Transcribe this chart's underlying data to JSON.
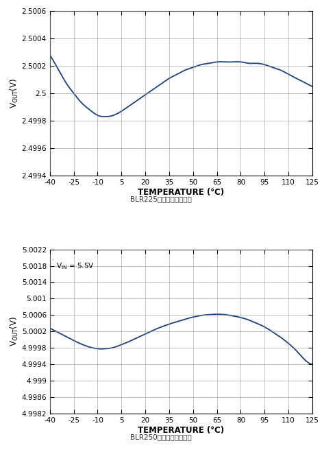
{
  "chart1": {
    "title": "BLR225基准输出温漂曲线",
    "xlabel": "TEMPERATURE (°C)",
    "xlim": [
      -40,
      125
    ],
    "ylim": [
      2.4994,
      2.5006
    ],
    "xticks": [
      -40,
      -25,
      -10,
      5,
      20,
      35,
      50,
      65,
      80,
      95,
      110,
      125
    ],
    "yticks": [
      2.4994,
      2.4996,
      2.4998,
      2.5,
      2.5002,
      2.5004,
      2.5006
    ],
    "ytick_labels": [
      "2.4994",
      "2.4996",
      "2.4998",
      "2.5",
      "2.5002",
      "2.5004",
      "2.5006"
    ],
    "line_color": "#1f3f7f",
    "curve_x": [
      -40,
      -35,
      -30,
      -25,
      -20,
      -15,
      -10,
      -5,
      0,
      5,
      10,
      15,
      20,
      25,
      30,
      35,
      40,
      45,
      50,
      55,
      60,
      65,
      70,
      75,
      80,
      85,
      90,
      95,
      100,
      105,
      110,
      115,
      120,
      125
    ],
    "curve_y": [
      2.50028,
      2.50018,
      2.50008,
      2.5,
      2.49993,
      2.49988,
      2.49984,
      2.49983,
      2.49984,
      2.49987,
      2.49991,
      2.49995,
      2.49999,
      2.50003,
      2.50007,
      2.50011,
      2.50014,
      2.50017,
      2.50019,
      2.50021,
      2.50022,
      2.50023,
      2.50023,
      2.50023,
      2.50023,
      2.50022,
      2.50022,
      2.50021,
      2.50019,
      2.50017,
      2.50014,
      2.50011,
      2.50008,
      2.50005
    ]
  },
  "chart2": {
    "title": "BLR250基准输出温漂曲线",
    "xlabel": "TEMPERATURE (°C)",
    "xlim": [
      -40,
      125
    ],
    "ylim": [
      4.9982,
      5.0022
    ],
    "xticks": [
      -40,
      -25,
      -10,
      5,
      20,
      35,
      50,
      65,
      80,
      95,
      110,
      125
    ],
    "yticks": [
      4.9982,
      4.9986,
      4.999,
      4.9994,
      4.9998,
      5.0002,
      5.0006,
      5.001,
      5.0014,
      5.0018,
      5.0022
    ],
    "ytick_labels": [
      "4.9982",
      "4.9986",
      "4.999",
      "4.9994",
      "4.9998",
      "5.0002",
      "5.0006",
      "5.001",
      "5.0014",
      "5.0018",
      "5.0022"
    ],
    "annotation": "V",
    "line_color": "#1f3f7f",
    "curve_x": [
      -40,
      -35,
      -30,
      -25,
      -20,
      -15,
      -10,
      -5,
      0,
      5,
      10,
      15,
      20,
      25,
      30,
      35,
      40,
      45,
      50,
      55,
      60,
      65,
      70,
      75,
      80,
      85,
      90,
      95,
      100,
      105,
      110,
      115,
      120,
      125
    ],
    "curve_y": [
      5.00028,
      5.00018,
      5.00008,
      4.99998,
      4.99989,
      4.99982,
      4.99978,
      4.99978,
      4.99981,
      4.99988,
      4.99996,
      5.00005,
      5.00014,
      5.00023,
      5.00031,
      5.00038,
      5.00044,
      5.0005,
      5.00055,
      5.00059,
      5.00061,
      5.00062,
      5.00061,
      5.00058,
      5.00054,
      5.00048,
      5.0004,
      5.00031,
      5.00019,
      5.00006,
      4.99991,
      4.99973,
      4.99952,
      4.9994
    ]
  },
  "bg_color": "#ffffff",
  "grid_color": "#999999",
  "tick_labelsize": 7.5,
  "axis_labelsize": 8.5,
  "title_fontsize": 7.5,
  "line_width": 1.3
}
